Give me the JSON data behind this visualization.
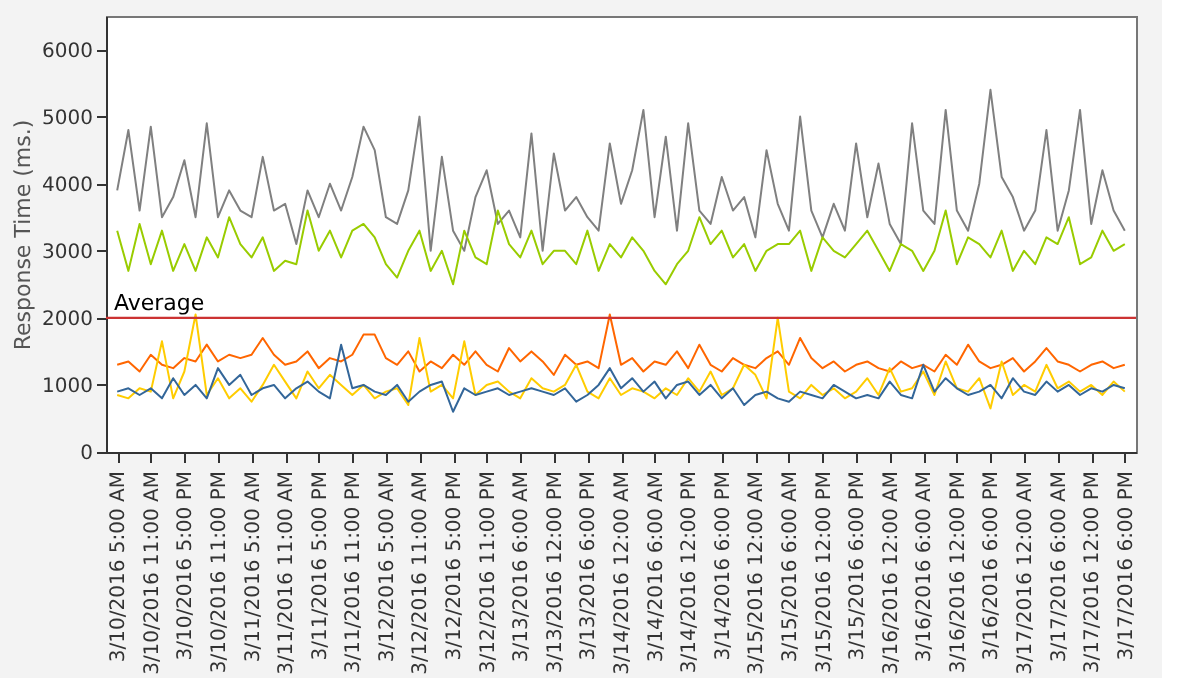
{
  "chart_data": {
    "type": "line",
    "ylabel": "Response Time (ms.)",
    "categories": [
      "3/10/2016 5:00 AM",
      null,
      null,
      "3/10/2016 11:00 AM",
      null,
      null,
      "3/10/2016 5:00 PM",
      null,
      null,
      "3/10/2016 11:00 PM",
      null,
      null,
      "3/11/2016 5:00 AM",
      null,
      null,
      "3/11/2016 11:00 AM",
      null,
      null,
      "3/11/2016 5:00 PM",
      null,
      null,
      "3/11/2016 11:00 PM",
      null,
      null,
      "3/12/2016 5:00 AM",
      null,
      null,
      "3/12/2016 11:00 AM",
      null,
      null,
      "3/12/2016 5:00 PM",
      null,
      null,
      "3/12/2016 11:00 PM",
      null,
      null,
      "3/13/2016 6:00 AM",
      null,
      null,
      "3/13/2016 12:00 PM",
      null,
      null,
      "3/13/2016 6:00 PM",
      null,
      null,
      "3/14/2016 12:00 AM",
      null,
      null,
      "3/14/2016 6:00 AM",
      null,
      null,
      "3/14/2016 12:00 PM",
      null,
      null,
      "3/14/2016 6:00 PM",
      null,
      null,
      "3/15/2016 12:00 AM",
      null,
      null,
      "3/15/2016 6:00 AM",
      null,
      null,
      "3/15/2016 12:00 PM",
      null,
      null,
      "3/15/2016 6:00 PM",
      null,
      null,
      "3/16/2016 12:00 AM",
      null,
      null,
      "3/16/2016 6:00 AM",
      null,
      null,
      "3/16/2016 12:00 PM",
      null,
      null,
      "3/16/2016 6:00 PM",
      null,
      null,
      "3/17/2016 12:00 AM",
      null,
      null,
      "3/17/2016 6:00 AM",
      null,
      null,
      "3/17/2016 12:00 PM",
      null,
      null,
      "3/17/2016 6:00 PM"
    ],
    "series": [
      {
        "color": "#808080",
        "values": [
          3900,
          4800,
          3600,
          4850,
          3500,
          3800,
          4350,
          3500,
          4900,
          3500,
          3900,
          3600,
          3500,
          4400,
          3600,
          3700,
          3100,
          3900,
          3500,
          4000,
          3600,
          4100,
          4850,
          4500,
          3500,
          3400,
          3900,
          5000,
          3000,
          4400,
          3300,
          3000,
          3800,
          4200,
          3400,
          3600,
          3200,
          4750,
          3000,
          4450,
          3600,
          3800,
          3500,
          3300,
          4600,
          3700,
          4200,
          5100,
          3500,
          4700,
          3300,
          4900,
          3600,
          3400,
          4100,
          3600,
          3800,
          3200,
          4500,
          3700,
          3300,
          5000,
          3600,
          3200,
          3700,
          3300,
          4600,
          3500,
          4300,
          3400,
          3100,
          4900,
          3600,
          3400,
          5100,
          3600,
          3300,
          4000,
          5400,
          4100,
          3800,
          3300,
          3600,
          4800,
          3300,
          3900,
          5100,
          3400,
          4200,
          3600,
          3300
        ]
      },
      {
        "color": "#99cc00",
        "values": [
          3300,
          2700,
          3400,
          2800,
          3300,
          2700,
          3100,
          2700,
          3200,
          2900,
          3500,
          3100,
          2900,
          3200,
          2700,
          2850,
          2800,
          3600,
          3000,
          3300,
          2900,
          3300,
          3400,
          3200,
          2800,
          2600,
          3000,
          3300,
          2700,
          3000,
          2500,
          3300,
          2900,
          2800,
          3600,
          3100,
          2900,
          3300,
          2800,
          3000,
          3000,
          2800,
          3300,
          2700,
          3100,
          2900,
          3200,
          3000,
          2700,
          2500,
          2800,
          3000,
          3500,
          3100,
          3300,
          2900,
          3100,
          2700,
          3000,
          3100,
          3100,
          3300,
          2700,
          3200,
          3000,
          2900,
          3100,
          3300,
          3000,
          2700,
          3100,
          3000,
          2700,
          3000,
          3600,
          2800,
          3200,
          3100,
          2900,
          3300,
          2700,
          3000,
          2800,
          3200,
          3100,
          3500,
          2800,
          2900,
          3300,
          3000,
          3100
        ]
      },
      {
        "color": "#ff6600",
        "values": [
          1300,
          1350,
          1200,
          1450,
          1300,
          1250,
          1400,
          1350,
          1600,
          1350,
          1450,
          1400,
          1450,
          1700,
          1450,
          1300,
          1350,
          1500,
          1250,
          1400,
          1350,
          1450,
          1750,
          1750,
          1400,
          1300,
          1500,
          1200,
          1350,
          1250,
          1450,
          1300,
          1500,
          1300,
          1200,
          1550,
          1350,
          1500,
          1350,
          1150,
          1450,
          1300,
          1350,
          1250,
          2050,
          1300,
          1400,
          1200,
          1350,
          1300,
          1500,
          1250,
          1600,
          1300,
          1200,
          1400,
          1300,
          1250,
          1400,
          1500,
          1300,
          1700,
          1400,
          1250,
          1350,
          1200,
          1300,
          1350,
          1250,
          1200,
          1350,
          1250,
          1300,
          1200,
          1450,
          1300,
          1600,
          1350,
          1250,
          1300,
          1400,
          1200,
          1350,
          1550,
          1350,
          1300,
          1200,
          1300,
          1350,
          1250,
          1300
        ]
      },
      {
        "color": "#ffcc00",
        "values": [
          850,
          800,
          950,
          900,
          1650,
          800,
          1200,
          2050,
          850,
          1100,
          800,
          950,
          750,
          1000,
          1300,
          1050,
          800,
          1200,
          950,
          1150,
          1000,
          850,
          1000,
          800,
          900,
          950,
          700,
          1700,
          900,
          1000,
          800,
          1650,
          850,
          1000,
          1050,
          900,
          800,
          1100,
          950,
          900,
          1000,
          1300,
          900,
          800,
          1100,
          850,
          950,
          900,
          800,
          950,
          850,
          1100,
          900,
          1200,
          850,
          950,
          1300,
          1150,
          800,
          2000,
          900,
          800,
          1000,
          850,
          950,
          800,
          900,
          1100,
          850,
          1250,
          900,
          950,
          1200,
          850,
          1350,
          950,
          900,
          1100,
          650,
          1350,
          850,
          1000,
          900,
          1300,
          950,
          1050,
          900,
          1000,
          850,
          1050,
          900
        ]
      },
      {
        "color": "#336699",
        "values": [
          900,
          950,
          850,
          950,
          800,
          1100,
          850,
          1000,
          800,
          1250,
          1000,
          1150,
          850,
          950,
          1000,
          800,
          950,
          1050,
          900,
          800,
          1600,
          950,
          1000,
          900,
          850,
          1000,
          750,
          900,
          1000,
          1050,
          600,
          950,
          850,
          900,
          950,
          850,
          900,
          950,
          900,
          850,
          950,
          750,
          850,
          1000,
          1250,
          950,
          1100,
          900,
          1050,
          800,
          1000,
          1050,
          850,
          1000,
          800,
          950,
          700,
          850,
          900,
          800,
          750,
          900,
          850,
          800,
          1000,
          900,
          800,
          850,
          800,
          1050,
          850,
          800,
          1300,
          900,
          1100,
          950,
          850,
          900,
          1000,
          800,
          1100,
          900,
          850,
          1050,
          900,
          1000,
          850,
          950,
          900,
          1000,
          950
        ]
      }
    ],
    "ylim": [
      0,
      6500
    ],
    "yticks": [
      0,
      1000,
      2000,
      3000,
      4000,
      5000,
      6000
    ],
    "ref_lines": [
      {
        "axis": "y",
        "value": 2000,
        "label": "Average",
        "color": "#cc3333"
      }
    ],
    "grid": false,
    "legend": false
  }
}
